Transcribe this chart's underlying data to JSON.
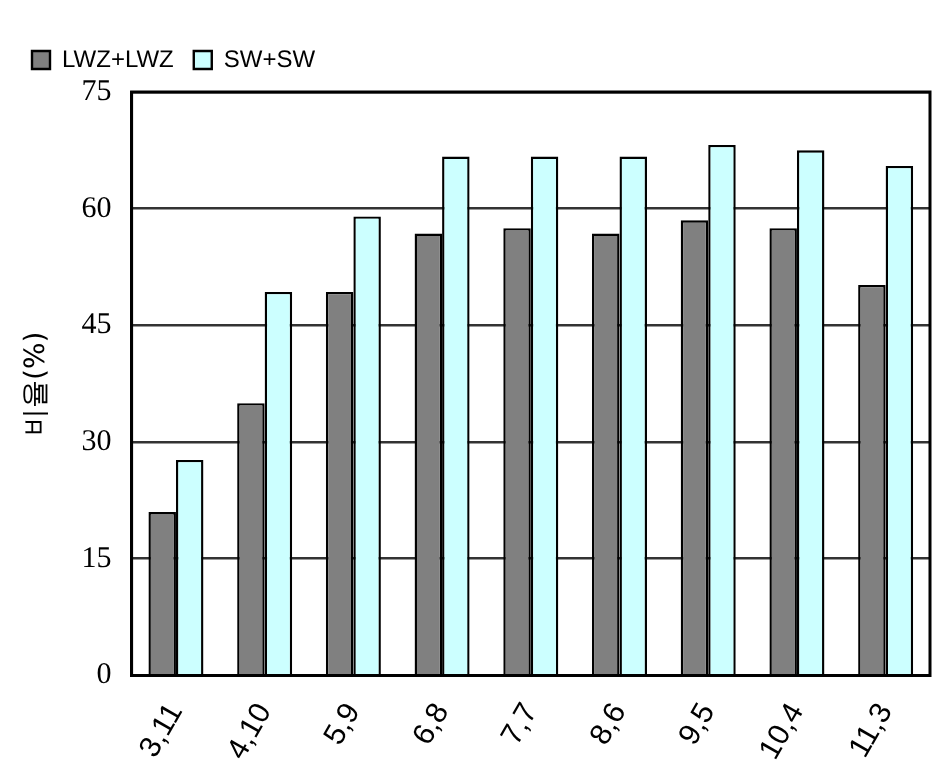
{
  "chart_data": {
    "type": "bar",
    "ylabel": "비율(%)",
    "categories": [
      "3,11",
      "4,10",
      "5,9",
      "6,8",
      "7,7",
      "8,6",
      "9,5",
      "10,4",
      "11,3"
    ],
    "series": [
      {
        "name": "LWZ+LWZ",
        "color": "#808080",
        "values": [
          21,
          35,
          49.3,
          56.8,
          57.5,
          56.8,
          58.5,
          57.5,
          50.2
        ]
      },
      {
        "name": "SW+SW",
        "color": "#ccffff",
        "values": [
          27.7,
          49.3,
          59,
          66.7,
          66.7,
          66.7,
          68.2,
          67.5,
          65.5
        ]
      }
    ],
    "ylim": [
      0,
      75
    ],
    "yticks": [
      0,
      15,
      30,
      45,
      60,
      75
    ],
    "grid": "y",
    "legend": "top left"
  }
}
